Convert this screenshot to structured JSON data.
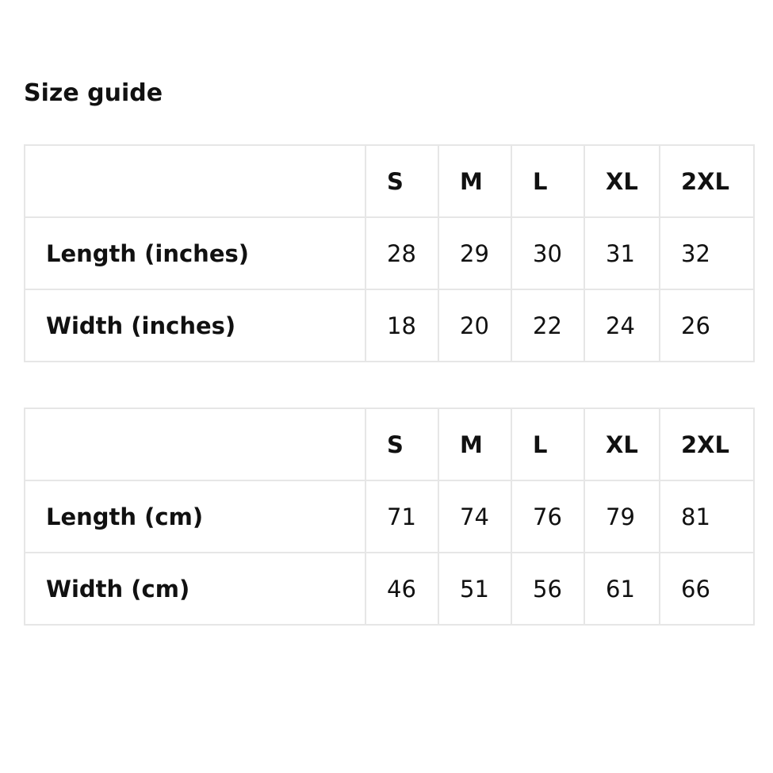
{
  "title": "Size guide",
  "tables": [
    {
      "headers": [
        "",
        "S",
        "M",
        "L",
        "XL",
        "2XL"
      ],
      "rows": [
        {
          "label": "Length (inches)",
          "values": [
            "28",
            "29",
            "30",
            "31",
            "32"
          ]
        },
        {
          "label": "Width (inches)",
          "values": [
            "18",
            "20",
            "22",
            "24",
            "26"
          ]
        }
      ]
    },
    {
      "headers": [
        "",
        "S",
        "M",
        "L",
        "XL",
        "2XL"
      ],
      "rows": [
        {
          "label": "Length (cm)",
          "values": [
            "71",
            "74",
            "76",
            "79",
            "81"
          ]
        },
        {
          "label": "Width (cm)",
          "values": [
            "46",
            "51",
            "56",
            "61",
            "66"
          ]
        }
      ]
    }
  ]
}
